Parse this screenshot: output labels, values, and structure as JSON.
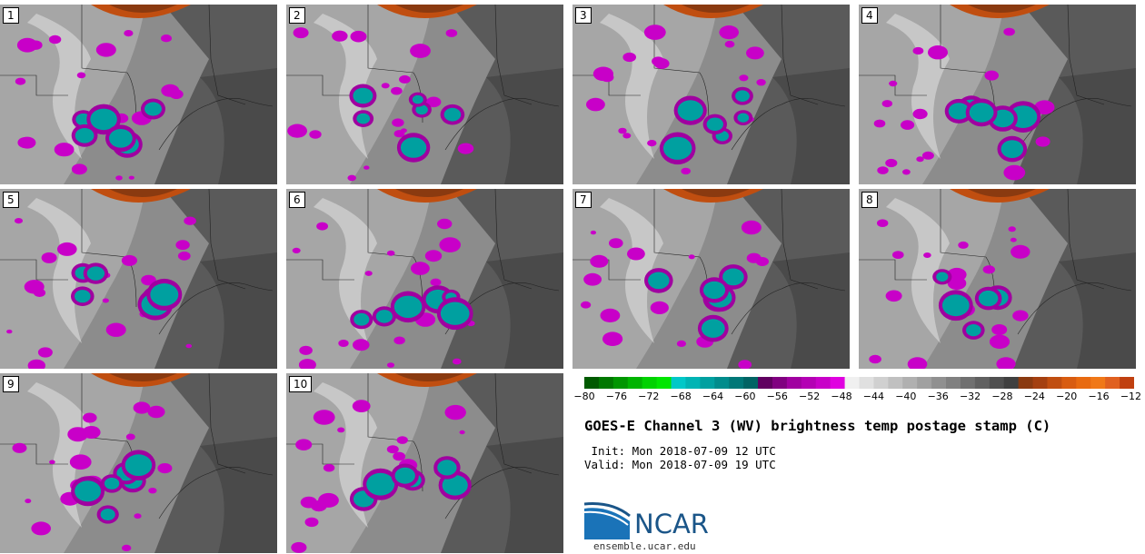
{
  "panels": [
    {
      "label": "1"
    },
    {
      "label": "2"
    },
    {
      "label": "3"
    },
    {
      "label": "4"
    },
    {
      "label": "5"
    },
    {
      "label": "6"
    },
    {
      "label": "7"
    },
    {
      "label": "8"
    },
    {
      "label": "9"
    },
    {
      "label": "10"
    }
  ],
  "colorbar": {
    "ticks": [
      "−80",
      "−76",
      "−72",
      "−68",
      "−64",
      "−60",
      "−56",
      "−52",
      "−48",
      "−44",
      "−40",
      "−36",
      "−32",
      "−28",
      "−24",
      "−20",
      "−16",
      "−12"
    ],
    "colors": [
      "#005a00",
      "#007800",
      "#009600",
      "#00b400",
      "#00d200",
      "#00e600",
      "#00c8c8",
      "#00b4b4",
      "#00a0a0",
      "#008c8c",
      "#007878",
      "#006464",
      "#600060",
      "#800080",
      "#a000a0",
      "#b400b4",
      "#c800c8",
      "#e000e0",
      "#f0f0f0",
      "#e0e0e0",
      "#d0d0d0",
      "#c0c0c0",
      "#b0b0b0",
      "#a0a0a0",
      "#909090",
      "#808080",
      "#707070",
      "#606060",
      "#505050",
      "#404040",
      "#8a3a10",
      "#a44010",
      "#c04e10",
      "#d85c10",
      "#e86a10",
      "#f07818",
      "#e06020",
      "#c04010"
    ]
  },
  "title": "GOES-E Channel 3 (WV) brightness temp postage stamp (C)",
  "init": " Init: Mon 2018-07-09 12 UTC",
  "valid": "Valid: Mon 2018-07-09 19 UTC",
  "logo_text": "NCAR",
  "site": "ensemble.ucar.edu"
}
